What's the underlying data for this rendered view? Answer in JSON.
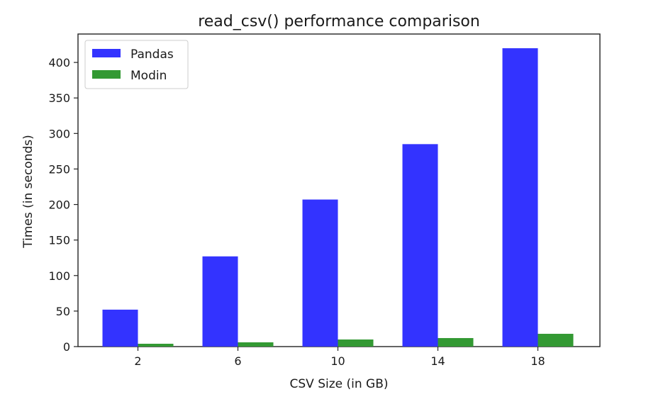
{
  "chart_data": {
    "type": "bar",
    "title": "read_csv() performance comparison",
    "xlabel": "CSV Size (in GB)",
    "ylabel": "Times (in seconds)",
    "categories": [
      "2",
      "6",
      "10",
      "14",
      "18"
    ],
    "series": [
      {
        "name": "Pandas",
        "values": [
          52,
          127,
          207,
          285,
          420
        ],
        "color": "#3333ff"
      },
      {
        "name": "Modin",
        "values": [
          4,
          6,
          10,
          12,
          18
        ],
        "color": "#339933"
      }
    ],
    "ylim": [
      0,
      440
    ],
    "yticks": [
      0,
      50,
      100,
      150,
      200,
      250,
      300,
      350,
      400
    ],
    "grid": false,
    "legend_position": "top-left"
  }
}
